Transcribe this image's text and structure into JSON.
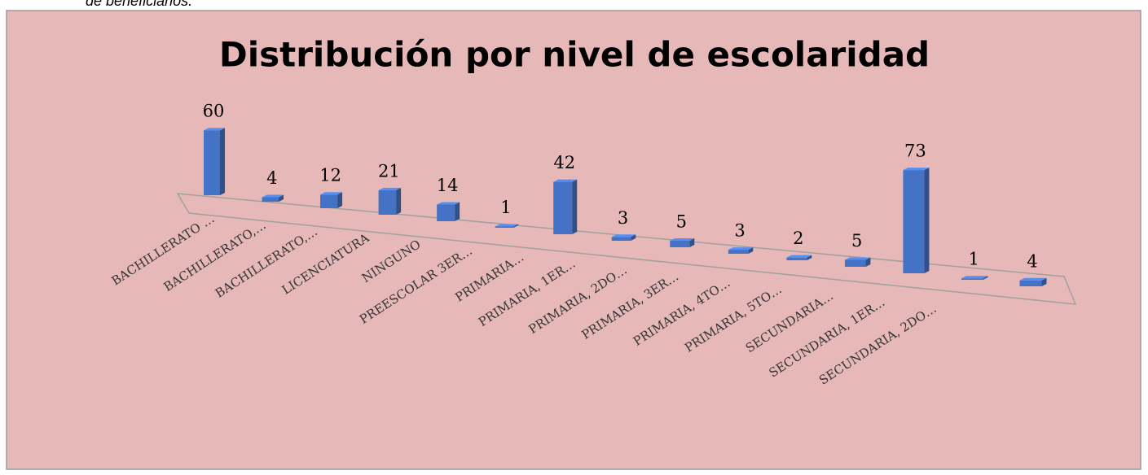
{
  "caption": "de beneficiarios.",
  "chart_data": {
    "type": "bar3d",
    "title": "Distribución por nivel de escolaridad",
    "categories": [
      "BACHILLERATO …",
      "BACHILLERATO,…",
      "BACHILLERATO,…",
      "LICENCIATURA",
      "NINGUNO",
      "PREESCOLAR 3ER…",
      "PRIMARIA…",
      "PRIMARIA, 1ER…",
      "PRIMARIA, 2DO…",
      "PRIMARIA, 3ER…",
      "PRIMARIA, 4TO…",
      "PRIMARIA, 5TO…",
      "SECUNDARIA…",
      "SECUNDARIA, 1ER…",
      "SECUNDARIA, 2DO…"
    ],
    "values": [
      60,
      4,
      12,
      21,
      14,
      1,
      42,
      3,
      5,
      3,
      2,
      5,
      73,
      1,
      4
    ],
    "color": "#4472c4"
  }
}
